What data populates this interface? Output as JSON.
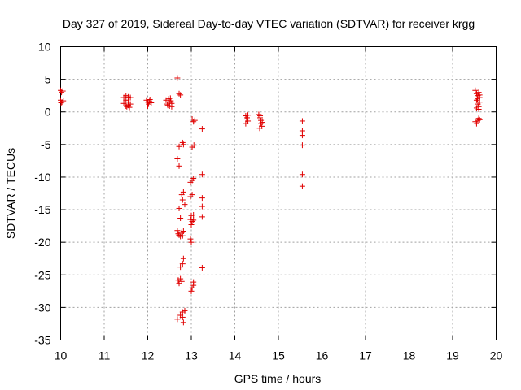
{
  "chart_data": {
    "type": "scatter",
    "title": "Day 327 of 2019, Sidereal Day-to-day VTEC variation (SDTVAR) for receiver krgg",
    "xlabel": "GPS time / hours",
    "ylabel": "SDTVAR / TECUs",
    "xlim": [
      10,
      20
    ],
    "ylim": [
      -35,
      10
    ],
    "xticks": [
      "10",
      "11",
      "12",
      "13",
      "14",
      "15",
      "16",
      "17",
      "18",
      "19",
      "20"
    ],
    "yticks": [
      "10",
      "5",
      "0",
      "-5",
      "-10",
      "-15",
      "-20",
      "-25",
      "-30",
      "-35"
    ],
    "grid": true,
    "marker": "+",
    "color": "#e00000",
    "series": [
      {
        "name": "SDTVAR",
        "points": [
          [
            10.0,
            3.3
          ],
          [
            10.02,
            3.0
          ],
          [
            10.05,
            3.2
          ],
          [
            10.0,
            1.8
          ],
          [
            10.03,
            1.5
          ],
          [
            10.06,
            1.7
          ],
          [
            10.01,
            1.4
          ],
          [
            11.45,
            2.2
          ],
          [
            11.45,
            1.3
          ],
          [
            11.5,
            2.5
          ],
          [
            11.5,
            1.8
          ],
          [
            11.5,
            0.9
          ],
          [
            11.55,
            2.3
          ],
          [
            11.55,
            1.5
          ],
          [
            11.55,
            1.0
          ],
          [
            11.6,
            2.2
          ],
          [
            11.6,
            1.2
          ],
          [
            11.52,
            0.8
          ],
          [
            11.58,
            0.7
          ],
          [
            11.97,
            1.8
          ],
          [
            12.0,
            1.5
          ],
          [
            12.02,
            1.2
          ],
          [
            12.05,
            1.9
          ],
          [
            12.08,
            1.4
          ],
          [
            12.0,
            0.9
          ],
          [
            12.04,
            1.6
          ],
          [
            12.42,
            1.8
          ],
          [
            12.45,
            1.2
          ],
          [
            12.48,
            2.0
          ],
          [
            12.5,
            1.5
          ],
          [
            12.5,
            0.9
          ],
          [
            12.52,
            2.1
          ],
          [
            12.55,
            1.3
          ],
          [
            12.55,
            0.8
          ],
          [
            12.46,
            1.0
          ],
          [
            12.53,
            1.7
          ],
          [
            12.68,
            5.2
          ],
          [
            12.72,
            2.8
          ],
          [
            12.75,
            2.6
          ],
          [
            12.68,
            -7.2
          ],
          [
            12.72,
            -5.3
          ],
          [
            12.72,
            -8.3
          ],
          [
            12.8,
            -4.7
          ],
          [
            12.82,
            -5.0
          ],
          [
            12.72,
            -14.8
          ],
          [
            12.75,
            -16.3
          ],
          [
            12.78,
            -12.7
          ],
          [
            12.8,
            -13.5
          ],
          [
            12.82,
            -12.3
          ],
          [
            12.85,
            -14.2
          ],
          [
            12.68,
            -18.2
          ],
          [
            12.7,
            -18.7
          ],
          [
            12.72,
            -18.9
          ],
          [
            12.75,
            -19.1
          ],
          [
            12.78,
            -18.5
          ],
          [
            12.8,
            -19.0
          ],
          [
            12.82,
            -18.3
          ],
          [
            12.75,
            -23.8
          ],
          [
            12.8,
            -23.3
          ],
          [
            12.82,
            -22.5
          ],
          [
            12.7,
            -25.8
          ],
          [
            12.72,
            -26.3
          ],
          [
            12.75,
            -25.6
          ],
          [
            12.78,
            -26.0
          ],
          [
            12.68,
            -31.8
          ],
          [
            12.75,
            -31.2
          ],
          [
            12.8,
            -31.5
          ],
          [
            12.8,
            -30.7
          ],
          [
            12.82,
            -32.3
          ],
          [
            12.85,
            -30.5
          ],
          [
            13.02,
            -1.1
          ],
          [
            13.05,
            -1.5
          ],
          [
            13.08,
            -1.3
          ],
          [
            13.02,
            -5.4
          ],
          [
            13.06,
            -5.1
          ],
          [
            12.98,
            -10.8
          ],
          [
            13.02,
            -10.5
          ],
          [
            13.05,
            -10.2
          ],
          [
            12.98,
            -13.0
          ],
          [
            13.02,
            -12.7
          ],
          [
            12.98,
            -16.5
          ],
          [
            13.0,
            -17.3
          ],
          [
            13.02,
            -16.8
          ],
          [
            13.05,
            -15.8
          ],
          [
            13.05,
            -16.6
          ],
          [
            13.0,
            -15.9
          ],
          [
            12.98,
            -19.5
          ],
          [
            13.0,
            -20.0
          ],
          [
            13.0,
            -27.5
          ],
          [
            13.02,
            -27.0
          ],
          [
            13.05,
            -26.6
          ],
          [
            13.05,
            -26.1
          ],
          [
            13.25,
            -2.6
          ],
          [
            13.25,
            -9.6
          ],
          [
            13.25,
            -13.2
          ],
          [
            13.25,
            -14.5
          ],
          [
            13.25,
            -16.1
          ],
          [
            13.25,
            -23.9
          ],
          [
            14.25,
            -0.6
          ],
          [
            14.28,
            -0.9
          ],
          [
            14.3,
            -1.4
          ],
          [
            14.25,
            -1.8
          ],
          [
            14.3,
            -0.5
          ],
          [
            14.27,
            -1.1
          ],
          [
            14.55,
            -0.4
          ],
          [
            14.58,
            -0.9
          ],
          [
            14.6,
            -1.3
          ],
          [
            14.6,
            -1.8
          ],
          [
            14.62,
            -2.2
          ],
          [
            14.58,
            -0.6
          ],
          [
            14.63,
            -1.6
          ],
          [
            14.57,
            -2.5
          ],
          [
            15.55,
            -1.4
          ],
          [
            15.55,
            -2.9
          ],
          [
            15.55,
            -3.6
          ],
          [
            15.55,
            -5.1
          ],
          [
            15.55,
            -9.6
          ],
          [
            15.55,
            -11.4
          ],
          [
            19.52,
            3.3
          ],
          [
            19.55,
            2.8
          ],
          [
            19.58,
            2.5
          ],
          [
            19.6,
            3.0
          ],
          [
            19.62,
            2.2
          ],
          [
            19.55,
            1.8
          ],
          [
            19.58,
            1.2
          ],
          [
            19.6,
            0.8
          ],
          [
            19.62,
            1.5
          ],
          [
            19.55,
            0.6
          ],
          [
            19.6,
            0.4
          ],
          [
            19.62,
            2.6
          ],
          [
            19.57,
            2.0
          ],
          [
            19.52,
            -1.5
          ],
          [
            19.55,
            -1.8
          ],
          [
            19.58,
            -1.3
          ],
          [
            19.6,
            -1.0
          ],
          [
            19.62,
            -1.2
          ]
        ]
      }
    ]
  }
}
